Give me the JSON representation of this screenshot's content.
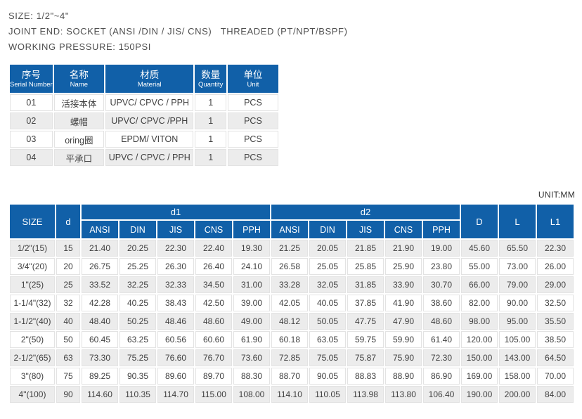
{
  "colors": {
    "header_blue": "#1160a8",
    "row_alt": "#ececec",
    "cell_border": "#e3e3e3",
    "body_text": "#404040"
  },
  "specs": {
    "size": "SIZE: 1/2\"~4\"",
    "joint_end": "JOINT END: SOCKET (ANSI /DIN / JIS/ CNS)   THREADED (PT/NPT/BSPF)",
    "working_pressure": "WORKING PRESSURE: 150PSI"
  },
  "parts_table": {
    "headers": [
      {
        "zh": "序号",
        "en": "Serial Number"
      },
      {
        "zh": "名称",
        "en": "Name"
      },
      {
        "zh": "材质",
        "en": "Material"
      },
      {
        "zh": "数量",
        "en": "Quantity"
      },
      {
        "zh": "单位",
        "en": "Unit"
      }
    ],
    "rows": [
      [
        "01",
        "活接本体",
        "UPVC/ CPVC / PPH",
        "1",
        "PCS"
      ],
      [
        "02",
        "螺帽",
        "UPVC/ CPVC /PPH",
        "1",
        "PCS"
      ],
      [
        "03",
        "oring圈",
        "EPDM/ VITON",
        "1",
        "PCS"
      ],
      [
        "04",
        "平承口",
        "UPVC / CPVC / PPH",
        "1",
        "PCS"
      ]
    ]
  },
  "unit_label": "UNIT:MM",
  "dim_table": {
    "headers": {
      "size": "SIZE",
      "d": "d",
      "d1": "d1",
      "d2": "d2",
      "D": "D",
      "L": "L",
      "L1": "L1"
    },
    "standards": [
      "ANSI",
      "DIN",
      "JIS",
      "CNS",
      "PPH"
    ],
    "rows": [
      [
        "1/2\"(15)",
        "15",
        "21.40",
        "20.25",
        "22.30",
        "22.40",
        "19.30",
        "21.25",
        "20.05",
        "21.85",
        "21.90",
        "19.00",
        "45.60",
        "65.50",
        "22.30"
      ],
      [
        "3/4\"(20)",
        "20",
        "26.75",
        "25.25",
        "26.30",
        "26.40",
        "24.10",
        "26.58",
        "25.05",
        "25.85",
        "25.90",
        "23.80",
        "55.00",
        "73.00",
        "26.00"
      ],
      [
        "1\"(25)",
        "25",
        "33.52",
        "32.25",
        "32.33",
        "34.50",
        "31.00",
        "33.28",
        "32.05",
        "31.85",
        "33.90",
        "30.70",
        "66.00",
        "79.00",
        "29.00"
      ],
      [
        "1-1/4\"(32)",
        "32",
        "42.28",
        "40.25",
        "38.43",
        "42.50",
        "39.00",
        "42.05",
        "40.05",
        "37.85",
        "41.90",
        "38.60",
        "82.00",
        "90.00",
        "32.50"
      ],
      [
        "1-1/2\"(40)",
        "40",
        "48.40",
        "50.25",
        "48.46",
        "48.60",
        "49.00",
        "48.12",
        "50.05",
        "47.75",
        "47.90",
        "48.60",
        "98.00",
        "95.00",
        "35.50"
      ],
      [
        "2\"(50)",
        "50",
        "60.45",
        "63.25",
        "60.56",
        "60.60",
        "61.90",
        "60.18",
        "63.05",
        "59.75",
        "59.90",
        "61.40",
        "120.00",
        "105.00",
        "38.50"
      ],
      [
        "2-1/2\"(65)",
        "63",
        "73.30",
        "75.25",
        "76.60",
        "76.70",
        "73.60",
        "72.85",
        "75.05",
        "75.87",
        "75.90",
        "72.30",
        "150.00",
        "143.00",
        "64.50"
      ],
      [
        "3\"(80)",
        "75",
        "89.25",
        "90.35",
        "89.60",
        "89.70",
        "88.30",
        "88.70",
        "90.05",
        "88.83",
        "88.90",
        "86.90",
        "169.00",
        "158.00",
        "70.00"
      ],
      [
        "4\"(100)",
        "90",
        "114.60",
        "110.35",
        "114.70",
        "115.00",
        "108.00",
        "114.10",
        "110.05",
        "113.98",
        "113.80",
        "106.40",
        "190.00",
        "200.00",
        "84.00"
      ]
    ]
  }
}
